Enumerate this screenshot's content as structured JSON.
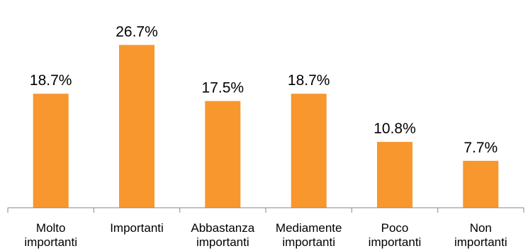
{
  "chart_data": {
    "type": "bar",
    "categories": [
      [
        "Molto",
        "importanti"
      ],
      [
        "Importanti"
      ],
      [
        "Abbastanza",
        "importanti"
      ],
      [
        "Mediamente",
        "importanti"
      ],
      [
        "Poco",
        "importanti"
      ],
      [
        "Non",
        "importanti"
      ]
    ],
    "values": [
      18.7,
      26.7,
      17.5,
      18.7,
      10.8,
      7.7
    ],
    "data_labels": [
      "18.7%",
      "26.7%",
      "17.5%",
      "18.7%",
      "10.8%",
      "7.7%"
    ],
    "title": "",
    "xlabel": "",
    "ylabel": "",
    "ylim": [
      0,
      30
    ],
    "grid": false,
    "legend": "none",
    "colors": {
      "bar": "#F7972E",
      "axis": "#868686",
      "text": "#000000"
    }
  }
}
